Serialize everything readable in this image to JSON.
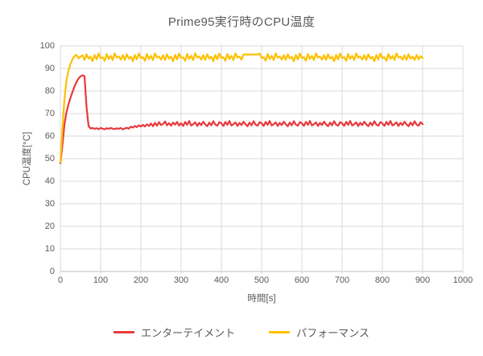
{
  "title": "Prime95実行時のCPU温度",
  "colors": {
    "entertainment_red": "#e8393c",
    "performance_gold": "#ffc000",
    "text_gray": "#595959",
    "gridline_gray": "#d9d9d9",
    "axis_gray": "#bfbfbf",
    "background": "#ffffff"
  },
  "chart_data": {
    "type": "line",
    "title": "Prime95実行時のCPU温度",
    "xlabel": "時間[s]",
    "ylabel": "CPU温度[°C]",
    "xlim": [
      0,
      1000
    ],
    "ylim": [
      0,
      100
    ],
    "x_ticks": [
      0,
      100,
      200,
      300,
      400,
      500,
      600,
      700,
      800,
      900,
      1000
    ],
    "y_ticks": [
      0,
      10,
      20,
      30,
      40,
      50,
      60,
      70,
      80,
      90,
      100
    ],
    "grid": true,
    "legend_position": "bottom",
    "x": [
      0,
      5,
      10,
      15,
      20,
      25,
      30,
      35,
      40,
      45,
      50,
      55,
      60,
      65,
      70,
      75,
      80,
      85,
      90,
      95,
      100,
      105,
      110,
      115,
      120,
      125,
      130,
      135,
      140,
      145,
      150,
      155,
      160,
      165,
      170,
      175,
      180,
      185,
      190,
      195,
      200,
      205,
      210,
      215,
      220,
      225,
      230,
      235,
      240,
      245,
      250,
      255,
      260,
      265,
      270,
      275,
      280,
      285,
      290,
      295,
      300,
      305,
      310,
      315,
      320,
      325,
      330,
      335,
      340,
      345,
      350,
      355,
      360,
      365,
      370,
      375,
      380,
      385,
      390,
      395,
      400,
      405,
      410,
      415,
      420,
      425,
      430,
      435,
      440,
      445,
      450,
      455,
      460,
      465,
      470,
      475,
      480,
      485,
      490,
      495,
      500,
      505,
      510,
      515,
      520,
      525,
      530,
      535,
      540,
      545,
      550,
      555,
      560,
      565,
      570,
      575,
      580,
      585,
      590,
      595,
      600,
      605,
      610,
      615,
      620,
      625,
      630,
      635,
      640,
      645,
      650,
      655,
      660,
      665,
      670,
      675,
      680,
      685,
      690,
      695,
      700,
      705,
      710,
      715,
      720,
      725,
      730,
      735,
      740,
      745,
      750,
      755,
      760,
      765,
      770,
      775,
      780,
      785,
      790,
      795,
      800,
      805,
      810,
      815,
      820,
      825,
      830,
      835,
      840,
      845,
      850,
      855,
      860,
      865,
      870,
      875,
      880,
      885,
      890,
      895,
      900
    ],
    "series": [
      {
        "name": "エンターテイメント",
        "color": "#e8393c",
        "values": [
          48,
          56,
          65,
          70.5,
          74,
          77,
          79.5,
          82,
          84,
          85.5,
          86.5,
          87,
          86.5,
          73,
          64.5,
          63.4,
          63.6,
          63.2,
          63.5,
          63.1,
          63.6,
          63.3,
          63.0,
          63.5,
          63.2,
          63.6,
          63.3,
          63.1,
          63.5,
          63.2,
          63.6,
          63.0,
          63.4,
          63.7,
          63.3,
          64.2,
          63.8,
          64.5,
          64.0,
          64.8,
          64.2,
          65.0,
          64.3,
          65.2,
          64.5,
          65.6,
          64.4,
          65.9,
          64.6,
          66.2,
          64.9,
          65.4,
          66.5,
          64.8,
          65.8,
          64.6,
          66.0,
          65.1,
          66.3,
          64.7,
          65.7,
          64.5,
          66.3,
          65.0,
          66.7,
          64.7,
          65.3,
          66.1,
          64.5,
          65.9,
          64.9,
          66.4,
          65.2,
          64.4,
          66.0,
          64.8,
          66.6,
          65.1,
          64.6,
          66.2,
          65.7,
          64.5,
          66.3,
          65.0,
          66.7,
          64.7,
          65.3,
          66.1,
          64.5,
          65.9,
          64.9,
          66.4,
          65.2,
          64.4,
          66.0,
          64.8,
          66.6,
          65.1,
          64.6,
          66.2,
          65.7,
          64.5,
          66.3,
          65.0,
          66.7,
          64.7,
          65.3,
          66.1,
          64.5,
          65.9,
          64.9,
          66.4,
          65.2,
          64.4,
          66.0,
          64.8,
          66.6,
          65.1,
          64.6,
          66.2,
          65.7,
          64.5,
          66.3,
          65.0,
          66.7,
          64.7,
          65.3,
          66.1,
          64.5,
          65.9,
          64.9,
          66.4,
          65.2,
          64.4,
          66.0,
          64.8,
          66.6,
          65.1,
          64.6,
          66.2,
          65.7,
          64.5,
          66.3,
          65.0,
          66.7,
          64.7,
          65.3,
          66.1,
          64.5,
          65.9,
          64.9,
          66.4,
          65.2,
          64.4,
          66.0,
          64.8,
          66.6,
          65.1,
          64.6,
          66.2,
          65.7,
          64.5,
          66.3,
          65.0,
          66.7,
          64.7,
          65.3,
          66.1,
          64.5,
          65.9,
          64.9,
          66.4,
          65.2,
          64.4,
          66.0,
          64.8,
          66.6,
          65.1,
          64.6,
          66.2,
          65.3
        ]
      },
      {
        "name": "パフォーマンス",
        "color": "#ffc000",
        "values": [
          48.5,
          63,
          76,
          84.5,
          89,
          92,
          94,
          95.5,
          96,
          94.5,
          95.2,
          95.9,
          93.8,
          96.3,
          94.4,
          95.2,
          93.2,
          96.0,
          94.0,
          96.6,
          94.6,
          95.0,
          93.4,
          96.4,
          94.2,
          95.6,
          93.7,
          96.7,
          94.8,
          95.3,
          93.9,
          95.9,
          93.8,
          96.3,
          94.4,
          95.2,
          93.2,
          96.0,
          94.0,
          96.6,
          94.6,
          95.0,
          93.4,
          96.4,
          94.2,
          95.6,
          93.7,
          96.7,
          94.8,
          95.3,
          93.9,
          95.9,
          93.8,
          96.3,
          94.4,
          95.2,
          93.2,
          96.0,
          94.0,
          96.6,
          94.6,
          95.0,
          93.4,
          96.4,
          94.2,
          95.6,
          93.7,
          96.7,
          94.8,
          95.3,
          93.9,
          95.9,
          93.8,
          96.3,
          94.4,
          95.2,
          93.2,
          96.0,
          94.0,
          96.6,
          94.6,
          95.0,
          93.4,
          96.4,
          94.2,
          95.6,
          93.7,
          96.7,
          94.8,
          95.3,
          93.9,
          96.2,
          96.2,
          96.2,
          96.2,
          96.2,
          96.2,
          96.2,
          96.2,
          96.6,
          94.6,
          95.0,
          93.4,
          96.4,
          94.2,
          95.6,
          93.7,
          96.7,
          94.8,
          95.3,
          93.9,
          95.9,
          93.8,
          96.3,
          94.4,
          95.2,
          93.2,
          96.0,
          94.0,
          96.6,
          94.6,
          95.0,
          93.4,
          96.4,
          94.2,
          95.6,
          93.7,
          96.7,
          94.8,
          95.3,
          93.9,
          95.9,
          93.8,
          96.3,
          94.4,
          95.2,
          93.2,
          96.0,
          94.0,
          96.6,
          94.6,
          95.0,
          93.4,
          96.4,
          94.2,
          95.6,
          93.7,
          96.7,
          94.8,
          95.3,
          93.9,
          95.9,
          93.8,
          96.3,
          94.4,
          95.2,
          93.2,
          96.0,
          94.0,
          96.6,
          94.6,
          95.0,
          93.4,
          96.4,
          94.2,
          95.6,
          93.7,
          96.7,
          94.8,
          95.3,
          93.9,
          95.9,
          93.8,
          96.3,
          94.4,
          95.2,
          93.8,
          96.0,
          94.0,
          95.5,
          94.6
        ]
      }
    ]
  }
}
